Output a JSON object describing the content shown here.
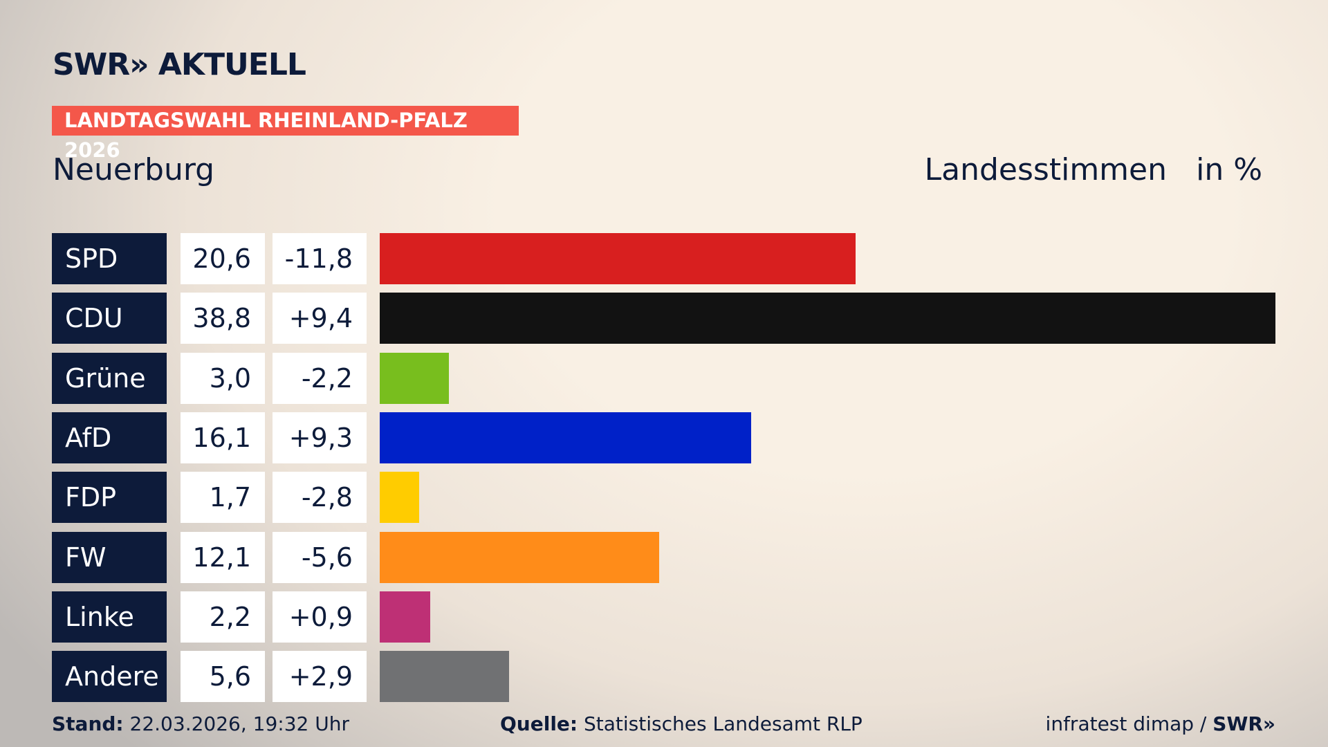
{
  "chart_data": {
    "type": "bar",
    "brand": "SWR",
    "brand_suffix": "AKTUELL",
    "title": "LANDTAGSWAHL RHEINLAND-PFALZ 2026",
    "subtitle": "Neuerburg",
    "measure": "Landesstimmen",
    "unit": "in %",
    "categories": [
      "SPD",
      "CDU",
      "Grüne",
      "AfD",
      "FDP",
      "FW",
      "Linke",
      "Andere"
    ],
    "values": [
      20.6,
      38.8,
      3.0,
      16.1,
      1.7,
      12.1,
      2.2,
      5.6
    ],
    "value_labels": [
      "20,6",
      "38,8",
      "3,0",
      "16,1",
      "1,7",
      "12,1",
      "2,2",
      "5,6"
    ],
    "colors": [
      "#d81f1f",
      "#121212",
      "#78be1e",
      "#0021c8",
      "#ffcc00",
      "#ff8c19",
      "#be3075",
      "#707173"
    ],
    "change": {
      "values": [
        -11.8,
        9.4,
        -2.2,
        9.3,
        -2.8,
        -5.6,
        0.9,
        2.9
      ],
      "value_labels": [
        "-11,8",
        "+9,4",
        "-2,2",
        "+9,3",
        "-2,8",
        "-5,6",
        "+0,9",
        "+2,9"
      ]
    },
    "footer": {
      "stand_label": "Stand:",
      "stand": "22.03.2026, 19:32 Uhr",
      "source_label": "Quelle:",
      "source": "Statistisches Landesamt RLP",
      "credit": "infratest dimap /",
      "credit_brand": "SWR"
    }
  }
}
